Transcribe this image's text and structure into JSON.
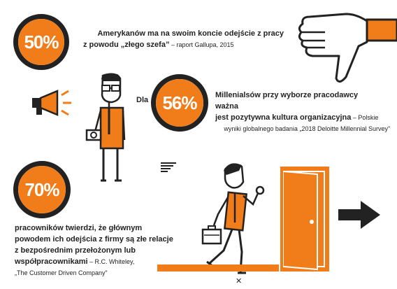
{
  "colors": {
    "accent": "#f07d1a",
    "ink": "#222222",
    "bg": "#ffffff"
  },
  "stat1": {
    "percent": "50%",
    "line1": "Amerykanów ma na swoim koncie odejście z pracy",
    "line2_bold": "z powodu „złego szefa”",
    "line2_source": " – raport Gallupa, 2015"
  },
  "stat2": {
    "prefix": "Dla",
    "percent": "56%",
    "line1": "Millenialsów przy wyborze pracodawcy ważna",
    "line2_bold": "jest pozytywna kultura organizacyjna",
    "line2_source": " – Polskie",
    "line3": "wyniki globalnego badania „2018 Deloitte Millennial Survey”"
  },
  "stat3": {
    "percent": "70%",
    "line1": "pracowników twierdzi, że głównym",
    "line2": "powodem ich odejścia z firmy są złe relacje",
    "line3": "z bezpośrednim przełożonym lub",
    "line4_bold": "współpracownikami",
    "line4_source": " –  R.C. Whiteley,",
    "line5": "„The Customer Driven Company”"
  },
  "icons": [
    "thumbs-down-icon",
    "megaphone-icon",
    "standing-man-icon",
    "speed-lines-icon",
    "walking-man-icon",
    "exit-door-icon",
    "exit-arrow-icon",
    "close-icon"
  ]
}
